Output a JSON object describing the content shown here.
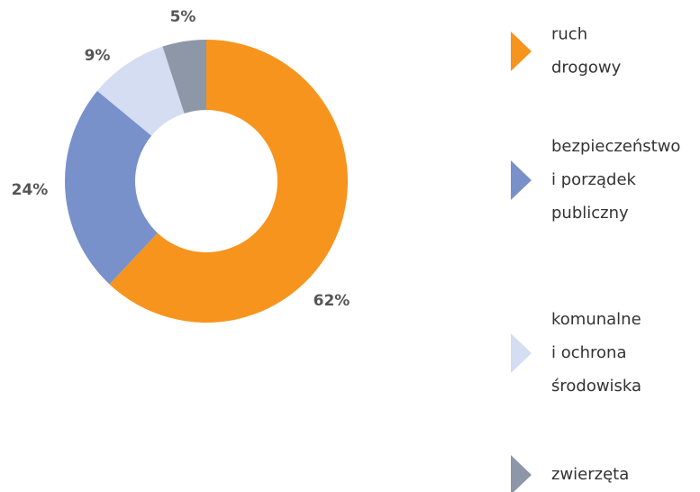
{
  "chart_data": {
    "type": "donut",
    "categories": [
      [
        "ruch",
        "drogowy"
      ],
      [
        "bezpieczeństwo",
        "i porządek",
        "publiczny"
      ],
      [
        "komunalne",
        "i ochrona",
        "środowiska"
      ],
      [
        "zwierzęta"
      ]
    ],
    "values": [
      62,
      24,
      9,
      5
    ],
    "value_labels": [
      "62%",
      "24%",
      "9%",
      "5%"
    ],
    "colors": [
      "#f7941d",
      "#7891cb",
      "#d4ddf1",
      "#8d97a8"
    ]
  }
}
